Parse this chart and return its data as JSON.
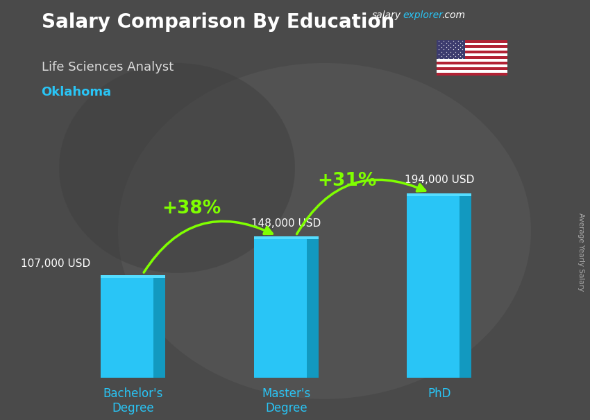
{
  "title": "Salary Comparison By Education",
  "subtitle": "Life Sciences Analyst",
  "location": "Oklahoma",
  "categories": [
    "Bachelor's\nDegree",
    "Master's\nDegree",
    "PhD"
  ],
  "values": [
    107000,
    148000,
    194000
  ],
  "value_labels": [
    "107,000 USD",
    "148,000 USD",
    "194,000 USD"
  ],
  "bar_color": "#29c5f6",
  "bar_color_dark": "#1299c0",
  "bar_color_top": "#55ddff",
  "background_color": "#4a4a4a",
  "overlay_color": "#333333",
  "title_color": "#ffffff",
  "subtitle_color": "#dddddd",
  "location_color": "#29c5f6",
  "value_label_color": "#ffffff",
  "xlabel_color": "#29c5f6",
  "arrow_color": "#7fff00",
  "pct_labels": [
    "+38%",
    "+31%"
  ],
  "ylim": [
    0,
    260000
  ],
  "bar_width": 0.42,
  "website_salary": "salary",
  "website_explorer": "explorer",
  "website_com": ".com",
  "ylabel": "Average Yearly Salary",
  "website_color_white": "#ffffff",
  "website_color_cyan": "#29c5f6",
  "flag_red": "#B22234",
  "flag_white": "#ffffff",
  "flag_blue": "#3C3B6E"
}
